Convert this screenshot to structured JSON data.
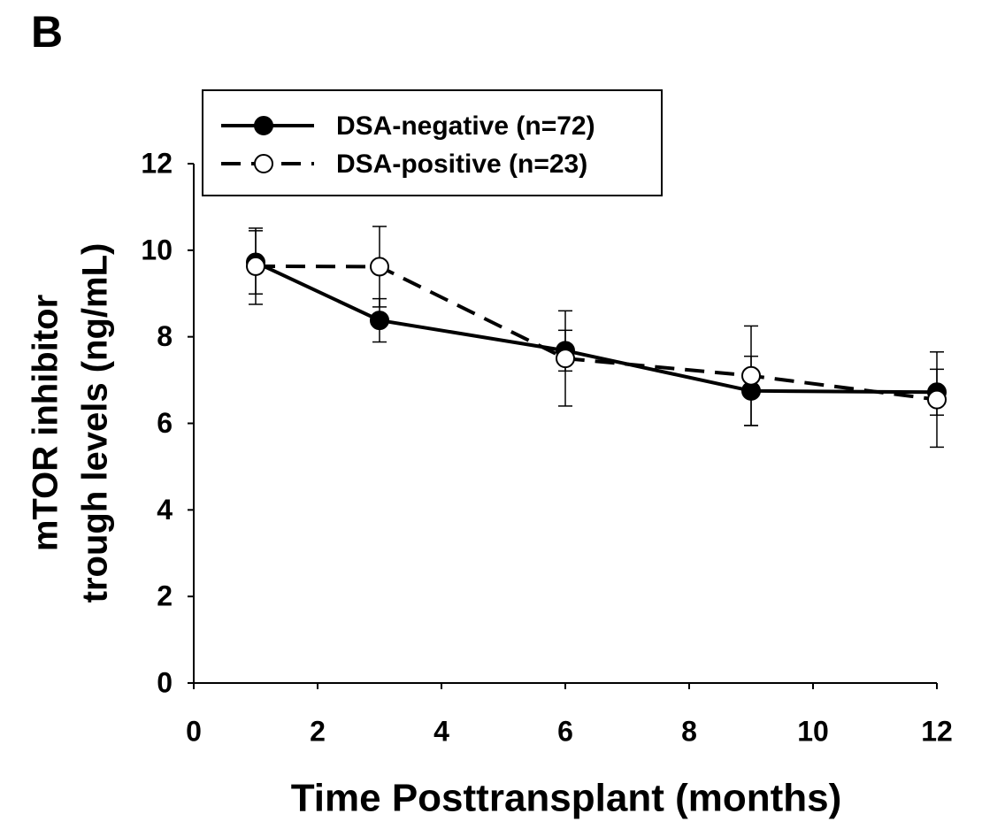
{
  "chart_data": {
    "type": "line",
    "panel_label": "B",
    "xlabel": "Time Posttransplant (months)",
    "ylabel": [
      "mTOR inhibitor",
      "trough levels (ng/mL)"
    ],
    "xlim": [
      0,
      12
    ],
    "xticks": [
      0,
      2,
      4,
      6,
      8,
      10,
      12
    ],
    "ylim": [
      0,
      12
    ],
    "yticks": [
      0,
      2,
      4,
      6,
      8,
      10,
      12
    ],
    "x": [
      1,
      3,
      6,
      9,
      12
    ],
    "legend": "upper left",
    "series": [
      {
        "name": "DSA-negative (n=72)",
        "color": "#000000",
        "marker_fill": "#000000",
        "linestyle": "solid",
        "values": [
          9.72,
          8.38,
          7.68,
          6.75,
          6.72
        ],
        "errors": [
          0.73,
          0.5,
          0.47,
          0.8,
          0.53
        ]
      },
      {
        "name": "DSA-positive (n=23)",
        "color": "#000000",
        "marker_fill": "#ffffff",
        "linestyle": "dashed",
        "values": [
          9.63,
          9.62,
          7.5,
          7.1,
          6.55
        ],
        "errors": [
          0.88,
          0.93,
          1.1,
          1.15,
          1.1
        ]
      }
    ]
  }
}
